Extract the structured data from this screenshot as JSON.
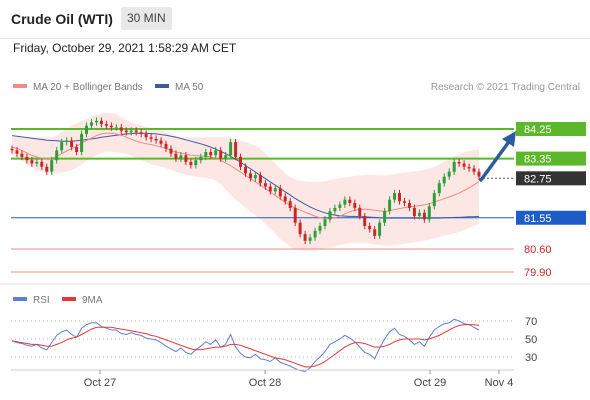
{
  "header": {
    "title": "Crude Oil (WTI)",
    "timeframe": "30 MIN",
    "datetime": "Friday, October 29, 2021 1:58:29 AM CET"
  },
  "legend": {
    "ma20": "MA 20 + Bollinger Bands",
    "ma50": "MA 50",
    "credit": "Research © 2021 Trading Central",
    "rsi": "RSI",
    "rsi_ma": "9MA"
  },
  "colors": {
    "ma20": "#f28b82",
    "ma50": "#3d5b9e",
    "band_fill": "#fde3e1",
    "candle_up": "#2e9e3a",
    "candle_down": "#c62828",
    "resistance": "#5cb82a",
    "support_blue": "#1e5cc8",
    "support_red": "#f28b82",
    "current": "#333333",
    "arrow": "#2a5d9f",
    "rsi": "#5b7fd9",
    "rsi_ma": "#e53935"
  },
  "chart_data": [
    {
      "type": "candlestick",
      "x_labels": [
        "Oct 27",
        "Oct 28",
        "Oct 29",
        "Nov 4"
      ],
      "price_levels": [
        {
          "value": 84.25,
          "label": "84.25",
          "kind": "resistance"
        },
        {
          "value": 83.35,
          "label": "83.35",
          "kind": "resistance"
        },
        {
          "value": 82.75,
          "label": "82.75",
          "kind": "current"
        },
        {
          "value": 81.55,
          "label": "81.55",
          "kind": "support"
        },
        {
          "value": 80.6,
          "label": "80.60",
          "kind": "support"
        },
        {
          "value": 79.9,
          "label": "79.90",
          "kind": "support"
        }
      ],
      "close": [
        83.6,
        83.5,
        83.4,
        83.3,
        83.2,
        83.25,
        83.1,
        82.95,
        83.3,
        83.6,
        83.85,
        83.9,
        83.7,
        83.55,
        84.1,
        84.35,
        84.45,
        84.5,
        84.4,
        84.35,
        84.3,
        84.3,
        84.2,
        84.15,
        84.2,
        84.15,
        84.1,
        84.0,
        83.95,
        83.9,
        83.8,
        83.65,
        83.5,
        83.35,
        83.45,
        83.25,
        83.15,
        83.3,
        83.4,
        83.55,
        83.45,
        83.6,
        83.35,
        83.45,
        83.85,
        83.4,
        83.1,
        82.9,
        82.75,
        82.85,
        82.6,
        82.5,
        82.35,
        82.45,
        82.2,
        82.05,
        81.85,
        81.4,
        81.05,
        80.85,
        80.95,
        81.15,
        81.3,
        81.5,
        81.75,
        81.85,
        81.95,
        82.1,
        82.0,
        81.85,
        81.6,
        81.3,
        81.2,
        81.0,
        81.4,
        81.75,
        82.1,
        82.3,
        82.05,
        82.0,
        81.85,
        81.6,
        81.7,
        81.5,
        81.9,
        82.3,
        82.6,
        82.8,
        82.95,
        83.25,
        83.2,
        83.1,
        83.05,
        82.95,
        82.8
      ],
      "ma20": [
        83.7,
        83.66,
        83.6,
        83.52,
        83.45,
        83.4,
        83.36,
        83.34,
        83.36,
        83.42,
        83.5,
        83.58,
        83.65,
        83.73,
        83.82,
        83.9,
        83.98,
        84.05,
        84.1,
        84.12,
        84.12,
        84.1,
        84.06,
        84.0,
        83.94,
        83.88,
        83.84,
        83.8,
        83.78,
        83.74,
        83.7,
        83.66,
        83.6,
        83.55,
        83.52,
        83.48,
        83.45,
        83.44,
        83.43,
        83.42,
        83.4,
        83.36,
        83.3,
        83.22,
        83.14,
        83.04,
        82.94,
        82.84,
        82.74,
        82.64,
        82.54,
        82.44,
        82.33,
        82.22,
        82.12,
        82.02,
        81.93,
        81.85,
        81.78,
        81.72,
        81.66,
        81.6,
        81.55,
        81.52,
        81.52,
        81.55,
        81.6,
        81.67,
        81.73,
        81.78,
        81.8,
        81.81,
        81.8,
        81.78,
        81.76,
        81.75,
        81.76,
        81.8,
        81.83,
        81.86,
        81.88,
        81.9,
        81.92,
        81.94,
        81.98,
        82.03,
        82.08,
        82.13,
        82.18,
        82.24,
        82.3,
        82.38,
        82.46,
        82.55,
        82.65
      ],
      "bb_upper": [
        84.0,
        84.0,
        84.0,
        84.0,
        84.0,
        84.0,
        84.0,
        84.0,
        84.0,
        84.05,
        84.15,
        84.25,
        84.35,
        84.42,
        84.5,
        84.55,
        84.62,
        84.68,
        84.72,
        84.74,
        84.74,
        84.7,
        84.6,
        84.52,
        84.45,
        84.4,
        84.36,
        84.32,
        84.28,
        84.24,
        84.2,
        84.15,
        84.1,
        84.05,
        84.0,
        84.0,
        84.0,
        84.0,
        84.0,
        84.0,
        84.0,
        84.0,
        84.0,
        84.0,
        84.0,
        83.95,
        83.9,
        83.85,
        83.8,
        83.75,
        83.65,
        83.5,
        83.35,
        83.2,
        83.05,
        82.9,
        82.8,
        82.72,
        82.68,
        82.66,
        82.65,
        82.64,
        82.64,
        82.66,
        82.7,
        82.73,
        82.75,
        82.78,
        82.8,
        82.82,
        82.84,
        82.86,
        82.86,
        82.85,
        82.84,
        82.84,
        82.86,
        82.88,
        82.9,
        82.92,
        82.94,
        82.96,
        82.98,
        83.0,
        83.05,
        83.1,
        83.18,
        83.26,
        83.34,
        83.42,
        83.48,
        83.54,
        83.58,
        83.62,
        83.64
      ],
      "bb_lower": [
        83.45,
        83.38,
        83.28,
        83.18,
        83.08,
        83.0,
        82.95,
        82.92,
        82.9,
        82.9,
        82.92,
        82.95,
        83.0,
        83.08,
        83.18,
        83.28,
        83.38,
        83.46,
        83.52,
        83.56,
        83.56,
        83.54,
        83.52,
        83.5,
        83.45,
        83.36,
        83.3,
        83.24,
        83.18,
        83.14,
        83.1,
        83.06,
        83.0,
        82.95,
        82.9,
        82.86,
        82.82,
        82.8,
        82.78,
        82.76,
        82.74,
        82.68,
        82.58,
        82.4,
        82.25,
        82.1,
        81.98,
        81.86,
        81.74,
        81.62,
        81.5,
        81.36,
        81.22,
        81.06,
        80.9,
        80.78,
        80.68,
        80.6,
        80.56,
        80.54,
        80.55,
        80.57,
        80.6,
        80.62,
        80.65,
        80.68,
        80.72,
        80.75,
        80.78,
        80.78,
        80.78,
        80.78,
        80.76,
        80.74,
        80.72,
        80.7,
        80.7,
        80.72,
        80.74,
        80.76,
        80.78,
        80.8,
        80.82,
        80.85,
        80.88,
        80.92,
        80.96,
        81.0,
        81.04,
        81.08,
        81.12,
        81.18,
        81.24,
        81.3,
        81.36
      ],
      "ma50": [
        84.05,
        84.03,
        84.01,
        83.99,
        83.97,
        83.95,
        83.93,
        83.91,
        83.9,
        83.89,
        83.88,
        83.88,
        83.88,
        83.89,
        83.91,
        83.93,
        83.95,
        83.97,
        84.0,
        84.02,
        84.04,
        84.06,
        84.08,
        84.1,
        84.11,
        84.12,
        84.12,
        84.12,
        84.11,
        84.1,
        84.08,
        84.06,
        84.03,
        84.0,
        83.96,
        83.92,
        83.88,
        83.84,
        83.8,
        83.75,
        83.7,
        83.64,
        83.57,
        83.5,
        83.42,
        83.33,
        83.24,
        83.14,
        83.04,
        82.94,
        82.84,
        82.74,
        82.64,
        82.54,
        82.44,
        82.34,
        82.24,
        82.14,
        82.05,
        81.96,
        81.88,
        81.81,
        81.75,
        81.7,
        81.66,
        81.63,
        81.61,
        81.6,
        81.59,
        81.59,
        81.58,
        81.58,
        81.57,
        81.56,
        81.55,
        81.54,
        81.54,
        81.54,
        81.54,
        81.54,
        81.54,
        81.54,
        81.54,
        81.54,
        81.54,
        81.54,
        81.54,
        81.55,
        81.55,
        81.56,
        81.56,
        81.57,
        81.58,
        81.58,
        81.59
      ]
    },
    {
      "type": "line",
      "title": "RSI",
      "y_ticks": [
        70,
        50,
        30
      ],
      "series": [
        {
          "name": "RSI",
          "values": [
            48,
            46,
            45,
            43,
            42,
            44,
            40,
            38,
            46,
            54,
            58,
            60,
            55,
            52,
            62,
            66,
            68,
            68,
            64,
            62,
            60,
            60,
            56,
            55,
            57,
            55,
            54,
            51,
            50,
            49,
            46,
            42,
            39,
            36,
            40,
            35,
            33,
            38,
            42,
            47,
            44,
            49,
            41,
            44,
            55,
            41,
            34,
            30,
            29,
            33,
            28,
            27,
            25,
            29,
            24,
            22,
            20,
            17,
            15,
            14,
            18,
            25,
            30,
            36,
            44,
            47,
            50,
            54,
            51,
            47,
            41,
            35,
            33,
            28,
            40,
            50,
            58,
            62,
            55,
            53,
            49,
            44,
            47,
            42,
            52,
            60,
            64,
            67,
            68,
            72,
            70,
            67,
            66,
            63,
            60
          ]
        },
        {
          "name": "9MA",
          "values": [
            48,
            47,
            46,
            45,
            44,
            44,
            43,
            42,
            42,
            44,
            46,
            49,
            51,
            52,
            55,
            58,
            61,
            63,
            63,
            63,
            63,
            62,
            61,
            60,
            59,
            58,
            57,
            56,
            54,
            53,
            51,
            49,
            47,
            45,
            43,
            41,
            39,
            38,
            38,
            39,
            40,
            41,
            41,
            42,
            44,
            44,
            43,
            41,
            39,
            37,
            35,
            33,
            31,
            29,
            28,
            27,
            25,
            23,
            21,
            19,
            19,
            20,
            22,
            25,
            29,
            33,
            37,
            41,
            44,
            46,
            46,
            45,
            43,
            41,
            41,
            42,
            44,
            47,
            49,
            50,
            50,
            50,
            50,
            49,
            50,
            52,
            54,
            57,
            60,
            63,
            65,
            66,
            66,
            66,
            65
          ]
        }
      ]
    }
  ]
}
